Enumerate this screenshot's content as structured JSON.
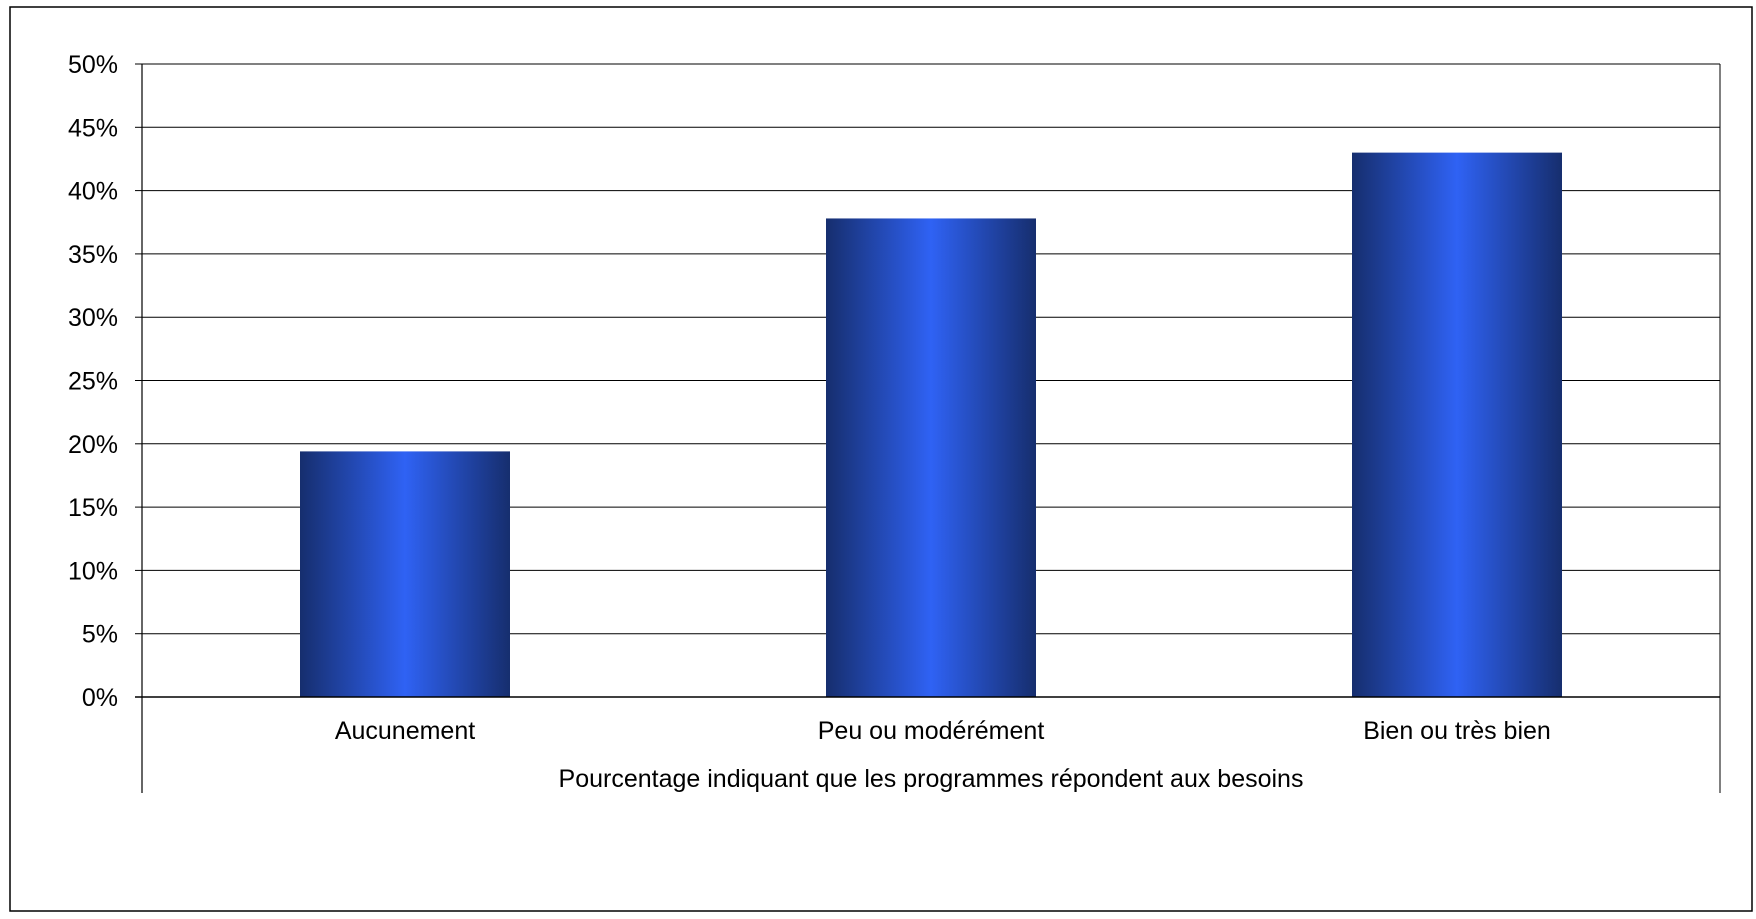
{
  "chart_data": {
    "type": "bar",
    "categories": [
      "Aucunement",
      "Peu ou modérément",
      "Bien ou très bien"
    ],
    "values": [
      19.4,
      37.8,
      43.0
    ],
    "xlabel": "Pourcentage indiquant que les programmes répondent aux besoins",
    "ylabel": "",
    "ylim": [
      0,
      50
    ],
    "ytick_step": 5,
    "ytick_suffix": "%",
    "grid": true,
    "legend": "none",
    "bar_color": "#2f62f4",
    "bar_edge_color": "#162e6e"
  }
}
